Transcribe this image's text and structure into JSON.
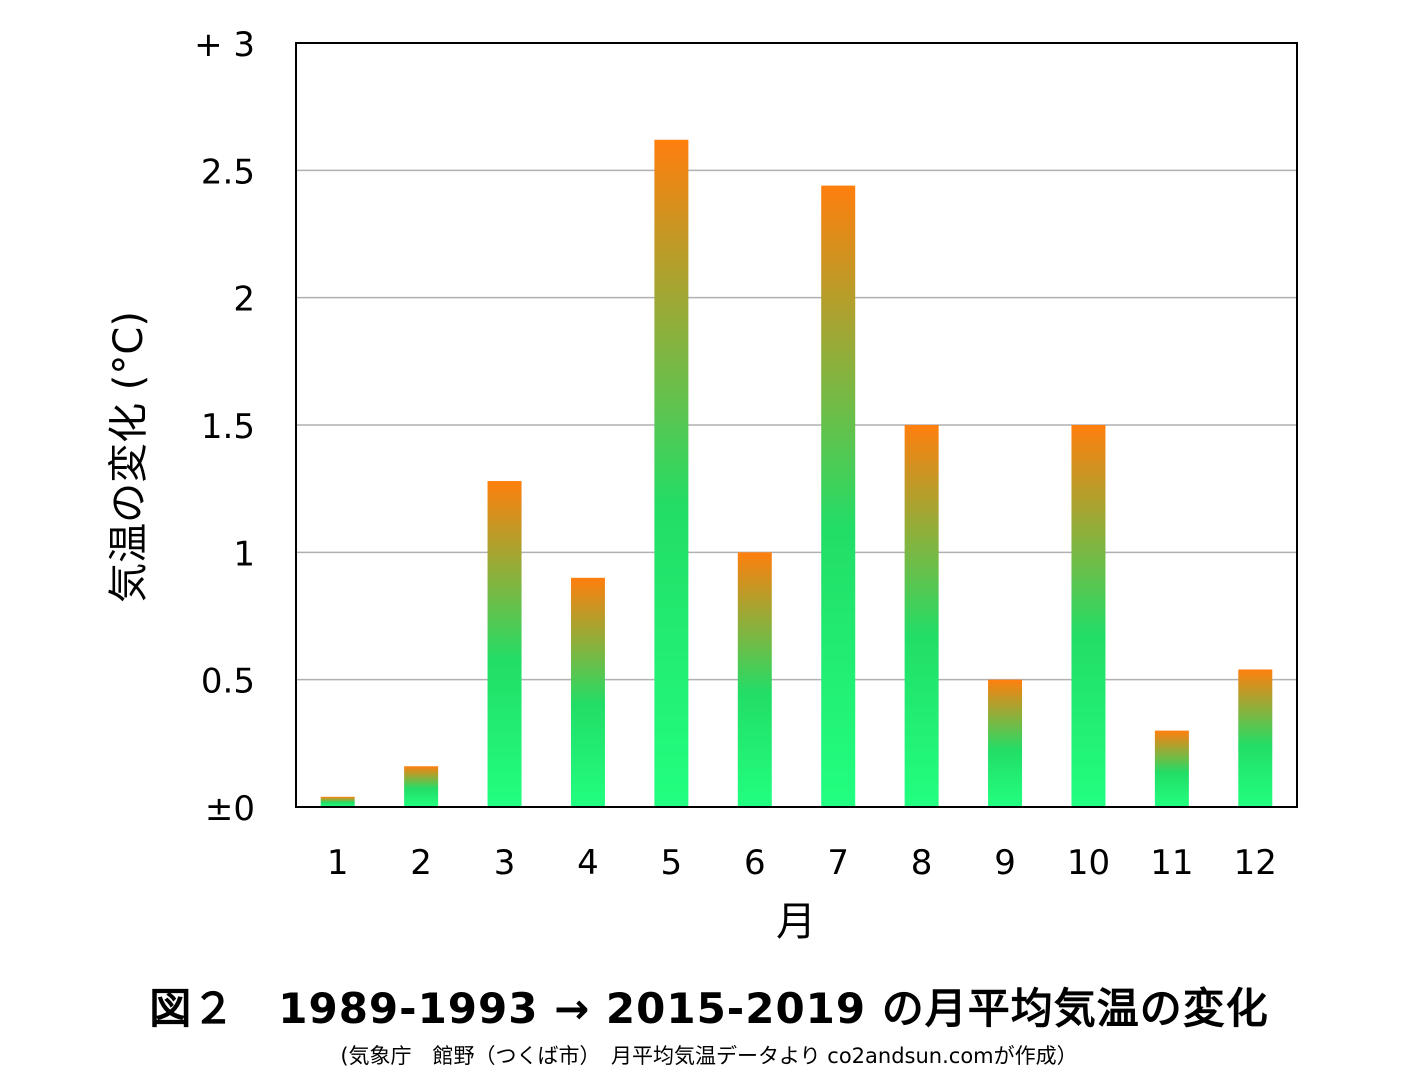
{
  "chart_data": {
    "type": "bar",
    "categories": [
      "1",
      "2",
      "3",
      "4",
      "5",
      "6",
      "7",
      "8",
      "9",
      "10",
      "11",
      "12"
    ],
    "values": [
      0.04,
      0.16,
      1.28,
      0.9,
      2.62,
      1.0,
      2.44,
      1.5,
      0.5,
      1.5,
      0.3,
      0.54
    ],
    "ylabel": "気温の変化 (°C)",
    "xlabel": "月",
    "ylim": [
      0,
      3
    ],
    "yticks": [
      {
        "value": 0,
        "label": "±0"
      },
      {
        "value": 0.5,
        "label": "0.5"
      },
      {
        "value": 1,
        "label": "1"
      },
      {
        "value": 1.5,
        "label": "1.5"
      },
      {
        "value": 2,
        "label": "2"
      },
      {
        "value": 2.5,
        "label": "2.5"
      },
      {
        "value": 3,
        "label": "+ 3"
      }
    ],
    "grid": true,
    "colors": {
      "bar_top": "#ff7f0e",
      "bar_middle": "#22dd66",
      "bar_bottom": "#22ff80",
      "grid": "#b0b0b0"
    }
  },
  "caption": {
    "title": "図２　1989-1993 → 2015-2019 の月平均気温の変化",
    "source": "(気象庁　館野（つくば市）　月平均気温データより co2andsun.comが作成）"
  }
}
